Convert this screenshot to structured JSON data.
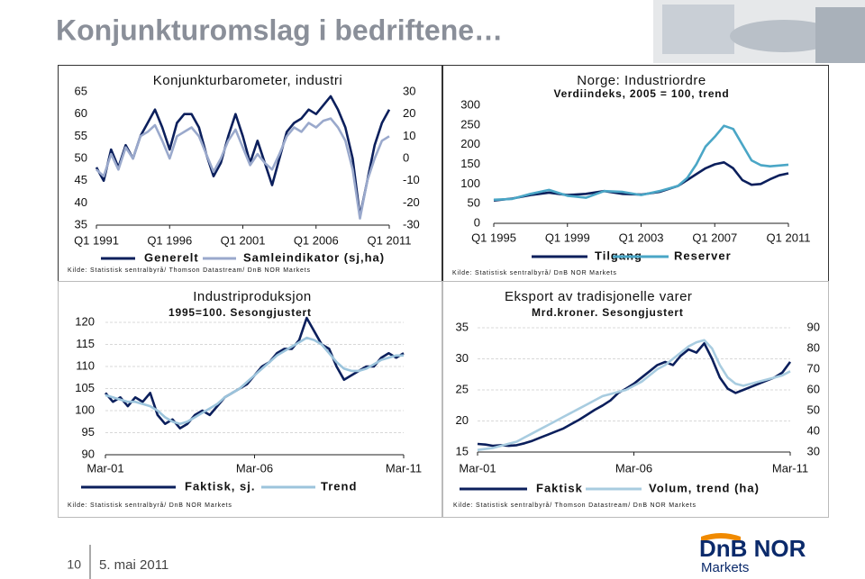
{
  "slide": {
    "title": "Konjunkturomslag i bedriftene…",
    "page": "10",
    "date": "5. mai 2011",
    "logo": "DnB NOR",
    "logo_sub": "Markets"
  },
  "chart_data": [
    {
      "type": "line",
      "title": "Konjunkturbarometer, industri",
      "source": "Kilde: Statistisk sentralbyrå/ Thomson Datastream/ DnB NOR Markets",
      "x": [
        "1991-Q1",
        "1991-Q3",
        "1992-Q1",
        "1992-Q3",
        "1993-Q1",
        "1993-Q3",
        "1994-Q1",
        "1994-Q3",
        "1995-Q1",
        "1995-Q3",
        "1996-Q1",
        "1996-Q3",
        "1997-Q1",
        "1997-Q3",
        "1998-Q1",
        "1998-Q3",
        "1999-Q1",
        "1999-Q3",
        "2000-Q1",
        "2000-Q3",
        "2001-Q1",
        "2001-Q3",
        "2002-Q1",
        "2002-Q3",
        "2003-Q1",
        "2003-Q3",
        "2004-Q1",
        "2004-Q3",
        "2005-Q1",
        "2005-Q3",
        "2006-Q1",
        "2006-Q3",
        "2007-Q1",
        "2007-Q3",
        "2008-Q1",
        "2008-Q3",
        "2009-Q1",
        "2009-Q3",
        "2010-Q1",
        "2010-Q3",
        "2011-Q1"
      ],
      "xlim": [
        "1991-Q1",
        "2011-Q1"
      ],
      "xticks": [
        {
          "value": "1991-Q1",
          "label": "Q1 1991"
        },
        {
          "value": "1996-Q1",
          "label": "Q1 1996"
        },
        {
          "value": "2001-Q1",
          "label": "Q1 2001"
        },
        {
          "value": "2006-Q1",
          "label": "Q1 2006"
        },
        {
          "value": "2011-Q1",
          "label": "Q1 2011"
        }
      ],
      "ylim": [
        35,
        65
      ],
      "yticks": [
        35,
        40,
        45,
        50,
        55,
        60,
        65
      ],
      "y2lim": [
        -30,
        30
      ],
      "y2ticks": [
        -30,
        -20,
        -10,
        0,
        10,
        20,
        30
      ],
      "grid": false,
      "series": [
        {
          "name": "Generelt",
          "color": "#0b1f5c",
          "values": [
            48,
            45,
            52,
            48,
            53,
            50,
            55,
            58,
            61,
            57,
            52,
            58,
            60,
            60,
            57,
            51,
            46,
            49,
            55,
            60,
            55,
            49,
            54,
            49,
            44,
            50,
            56,
            58,
            59,
            61,
            60,
            62,
            64,
            61,
            57,
            50,
            37,
            45,
            53,
            58,
            61
          ]
        },
        {
          "name": "Samleindikator (sj,ha)",
          "color": "#9aa9cc",
          "axis": "y2",
          "values": [
            -5,
            -8,
            2,
            -5,
            5,
            0,
            10,
            12,
            15,
            8,
            0,
            10,
            12,
            14,
            10,
            2,
            -6,
            0,
            8,
            13,
            5,
            -3,
            2,
            -2,
            -5,
            2,
            10,
            14,
            12,
            16,
            14,
            17,
            18,
            14,
            8,
            -5,
            -27,
            -10,
            0,
            8,
            10
          ]
        }
      ]
    },
    {
      "type": "line",
      "title": "Norge: Industriordre",
      "subtitle": "Verdiindeks, 2005 = 100, trend",
      "source": "Kilde: Statistisk sentralbyrå/ DnB NOR Markets",
      "x": [
        "1995-Q1",
        "1996-Q1",
        "1997-Q1",
        "1998-Q1",
        "1999-Q1",
        "2000-Q1",
        "2001-Q1",
        "2002-Q1",
        "2003-Q1",
        "2004-Q1",
        "2005-Q1",
        "2005-Q3",
        "2006-Q1",
        "2006-Q3",
        "2007-Q1",
        "2007-Q3",
        "2008-Q1",
        "2008-Q3",
        "2009-Q1",
        "2009-Q3",
        "2010-Q1",
        "2010-Q3",
        "2011-Q1"
      ],
      "xlim": [
        "1995-Q1",
        "2011-Q1"
      ],
      "xticks": [
        {
          "value": "1995-Q1",
          "label": "Q1 1995"
        },
        {
          "value": "1999-Q1",
          "label": "Q1 1999"
        },
        {
          "value": "2003-Q1",
          "label": "Q1 2003"
        },
        {
          "value": "2007-Q1",
          "label": "Q1 2007"
        },
        {
          "value": "2011-Q1",
          "label": "Q1 2011"
        }
      ],
      "ylim": [
        0,
        300
      ],
      "yticks": [
        0,
        50,
        100,
        150,
        200,
        250,
        300
      ],
      "grid": false,
      "series": [
        {
          "name": "Tilgang",
          "color": "#0b1f5c",
          "values": [
            58,
            63,
            72,
            78,
            72,
            75,
            82,
            75,
            73,
            80,
            95,
            110,
            125,
            140,
            150,
            155,
            140,
            110,
            98,
            100,
            112,
            122,
            127
          ]
        },
        {
          "name": "Reserver",
          "color": "#4aa6c6",
          "values": [
            60,
            62,
            75,
            85,
            70,
            65,
            82,
            80,
            72,
            82,
            95,
            115,
            150,
            195,
            220,
            248,
            240,
            200,
            160,
            148,
            145,
            147,
            149
          ]
        }
      ]
    },
    {
      "type": "line",
      "title": "Industriproduksjon",
      "subtitle": "1995=100. Sesongjustert",
      "source": "Kilde: Statistisk sentralbyrå/ DnB NOR Markets",
      "x": [
        "2001-03",
        "2001-06",
        "2001-09",
        "2001-12",
        "2002-03",
        "2002-06",
        "2002-09",
        "2002-12",
        "2003-03",
        "2003-06",
        "2003-09",
        "2003-12",
        "2004-03",
        "2004-06",
        "2004-09",
        "2004-12",
        "2005-03",
        "2005-06",
        "2005-09",
        "2005-12",
        "2006-03",
        "2006-06",
        "2006-09",
        "2006-12",
        "2007-03",
        "2007-06",
        "2007-09",
        "2007-12",
        "2008-03",
        "2008-06",
        "2008-09",
        "2008-12",
        "2009-03",
        "2009-06",
        "2009-09",
        "2009-12",
        "2010-03",
        "2010-06",
        "2010-09",
        "2010-12",
        "2011-03"
      ],
      "xlim": [
        "2001-03",
        "2011-03"
      ],
      "xticks": [
        {
          "value": "2001-03",
          "label": "Mar-01"
        },
        {
          "value": "2006-03",
          "label": "Mar-06"
        },
        {
          "value": "2011-03",
          "label": "Mar-11"
        }
      ],
      "ylim": [
        90,
        120
      ],
      "yticks": [
        90,
        95,
        100,
        105,
        110,
        115,
        120
      ],
      "grid": true,
      "series": [
        {
          "name": "Faktisk, sj.",
          "color": "#0b1f5c",
          "values": [
            104,
            102,
            103,
            101,
            103,
            102,
            104,
            99,
            97,
            98,
            96,
            97,
            99,
            100,
            99,
            101,
            103,
            104,
            105,
            106,
            108,
            110,
            111,
            113,
            114,
            114,
            116,
            121,
            118,
            115,
            114,
            110,
            107,
            108,
            109,
            110,
            110,
            112,
            113,
            112,
            113
          ]
        },
        {
          "name": "Trend",
          "color": "#9cc4dc",
          "values": [
            103.5,
            103,
            102.5,
            102,
            102,
            101.5,
            101,
            100,
            98.5,
            97.5,
            97,
            97.5,
            98.5,
            99.5,
            100.5,
            101.5,
            103,
            104,
            105,
            106.5,
            108,
            109.5,
            111,
            112.5,
            113.5,
            114.5,
            115.5,
            116.5,
            116,
            115,
            113,
            111,
            109.5,
            109,
            109,
            109.5,
            110.5,
            111.5,
            112,
            112.5,
            112.5
          ]
        }
      ]
    },
    {
      "type": "line",
      "title": "Eksport av tradisjonelle varer",
      "subtitle": "Mrd.kroner. Sesongjustert",
      "source": "Kilde: Statistisk sentralbyrå/ Thomson Datastream/ DnB NOR Markets",
      "x": [
        "2001-03",
        "2001-06",
        "2001-09",
        "2001-12",
        "2002-03",
        "2002-06",
        "2002-09",
        "2002-12",
        "2003-03",
        "2003-06",
        "2003-09",
        "2003-12",
        "2004-03",
        "2004-06",
        "2004-09",
        "2004-12",
        "2005-03",
        "2005-06",
        "2005-09",
        "2005-12",
        "2006-03",
        "2006-06",
        "2006-09",
        "2006-12",
        "2007-03",
        "2007-06",
        "2007-09",
        "2007-12",
        "2008-03",
        "2008-06",
        "2008-09",
        "2008-12",
        "2009-03",
        "2009-06",
        "2009-09",
        "2009-12",
        "2010-03",
        "2010-06",
        "2010-09",
        "2010-12",
        "2011-03"
      ],
      "xlim": [
        "2001-03",
        "2011-03"
      ],
      "xticks": [
        {
          "value": "2001-03",
          "label": "Mar-01"
        },
        {
          "value": "2006-03",
          "label": "Mar-06"
        },
        {
          "value": "2011-03",
          "label": "Mar-11"
        }
      ],
      "ylim": [
        15,
        35
      ],
      "yticks": [
        15,
        20,
        25,
        30,
        35
      ],
      "y2lim": [
        30,
        90
      ],
      "y2ticks": [
        30,
        40,
        50,
        60,
        70,
        80,
        90
      ],
      "grid": true,
      "series": [
        {
          "name": "Faktisk",
          "color": "#0b1f5c",
          "values": [
            16.3,
            16.2,
            16.0,
            16.1,
            16.0,
            16.1,
            16.4,
            16.8,
            17.3,
            17.8,
            18.3,
            18.8,
            19.5,
            20.2,
            21.0,
            21.8,
            22.5,
            23.3,
            24.5,
            25.2,
            26.0,
            27.0,
            28.0,
            29.0,
            29.5,
            29.0,
            30.5,
            31.5,
            31.0,
            32.5,
            30.0,
            27.0,
            25.2,
            24.5,
            25.0,
            25.5,
            26.0,
            26.5,
            27.0,
            27.8,
            29.5
          ]
        },
        {
          "name": "Volum, trend (ha)",
          "color": "#a8cce0",
          "axis": "y2",
          "values": [
            31,
            31.5,
            32,
            33,
            34,
            35,
            37,
            39,
            41,
            43,
            45,
            47,
            49,
            51,
            53,
            55,
            57,
            58,
            59,
            60,
            62,
            64,
            67,
            70,
            72,
            75,
            78,
            81,
            83,
            84,
            80,
            72,
            66,
            63,
            62,
            63,
            64,
            65,
            66,
            67,
            69
          ]
        }
      ]
    }
  ]
}
